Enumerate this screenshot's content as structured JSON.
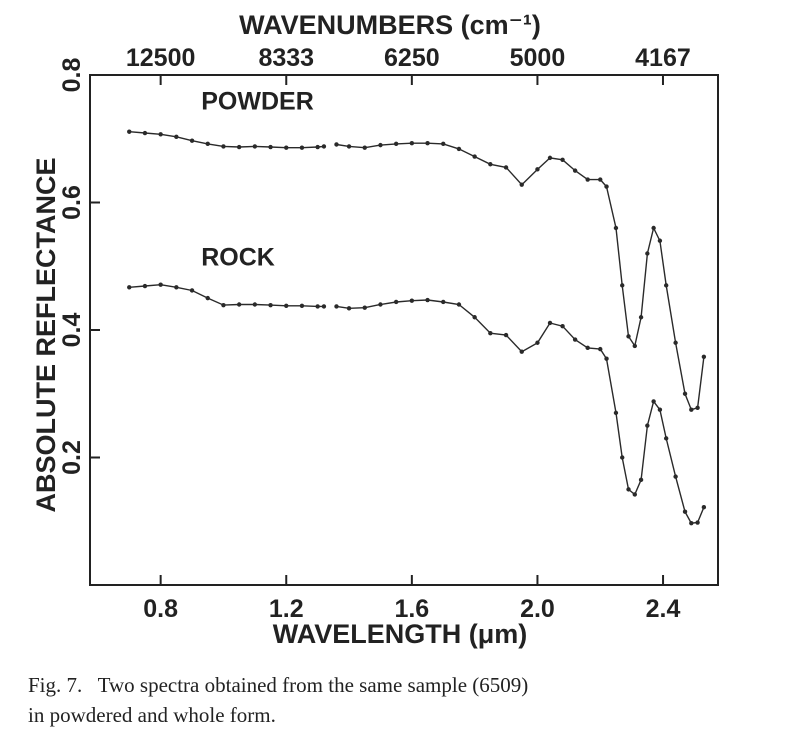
{
  "chart_data": {
    "type": "line",
    "xlabel": "WAVELENGTH (μm)",
    "ylabel": "ABSOLUTE REFLECTANCE",
    "x2label": "WAVENUMBERS (cm⁻¹)",
    "xlim": [
      0.575,
      2.575
    ],
    "ylim": [
      0,
      0.8
    ],
    "x2lim": [
      17391,
      3883
    ],
    "x2scale": "reciprocal",
    "xticks": [
      0.8,
      1.2,
      1.6,
      {
        "value": 2,
        "label": "2.0"
      },
      2.4
    ],
    "yticks": [
      0.2,
      0.4,
      0.6,
      0.8
    ],
    "x2ticks": [
      12500,
      8333,
      6250,
      5000,
      4167
    ],
    "grid": false,
    "markers": true,
    "x": [
      0.7,
      0.75,
      0.8,
      0.85,
      0.9,
      0.95,
      1.0,
      1.05,
      1.1,
      1.15,
      1.2,
      1.25,
      1.3,
      1.32,
      1.34,
      1.36,
      1.4,
      1.45,
      1.5,
      1.55,
      1.6,
      1.65,
      1.7,
      1.75,
      1.8,
      1.85,
      1.9,
      1.95,
      2.0,
      2.04,
      2.08,
      2.12,
      2.16,
      2.2,
      2.22,
      2.25,
      2.27,
      2.29,
      2.31,
      2.33,
      2.35,
      2.37,
      2.39,
      2.41,
      2.44,
      2.47,
      2.49,
      2.51,
      2.53
    ],
    "series": [
      {
        "name": "POWDER",
        "color": "#2a2a2a",
        "values": [
          0.711,
          0.709,
          0.707,
          0.703,
          0.697,
          0.692,
          0.688,
          0.687,
          0.688,
          0.687,
          0.686,
          0.686,
          0.687,
          0.688,
          null,
          0.691,
          0.688,
          0.686,
          0.69,
          0.692,
          0.693,
          0.693,
          0.692,
          0.684,
          0.672,
          0.66,
          0.655,
          0.628,
          0.652,
          0.67,
          0.667,
          0.65,
          0.636,
          0.636,
          0.625,
          0.56,
          0.47,
          0.39,
          0.375,
          0.42,
          0.52,
          0.56,
          0.54,
          0.47,
          0.38,
          0.3,
          0.275,
          0.278,
          0.358
        ]
      },
      {
        "name": "ROCK",
        "color": "#2a2a2a",
        "values": [
          0.467,
          0.469,
          0.471,
          0.467,
          0.462,
          0.45,
          0.439,
          0.44,
          0.44,
          0.439,
          0.438,
          0.438,
          0.437,
          0.437,
          null,
          0.437,
          0.434,
          0.435,
          0.44,
          0.444,
          0.446,
          0.447,
          0.444,
          0.44,
          0.42,
          0.395,
          0.392,
          0.366,
          0.38,
          0.411,
          0.406,
          0.385,
          0.372,
          0.37,
          0.355,
          0.27,
          0.2,
          0.15,
          0.142,
          0.165,
          0.25,
          0.288,
          0.275,
          0.23,
          0.17,
          0.115,
          0.097,
          0.098,
          0.122
        ]
      }
    ],
    "caption": [
      "Fig. 7.   Two spectra obtained from the same sample (6509)",
      "in powdered and whole form."
    ]
  }
}
